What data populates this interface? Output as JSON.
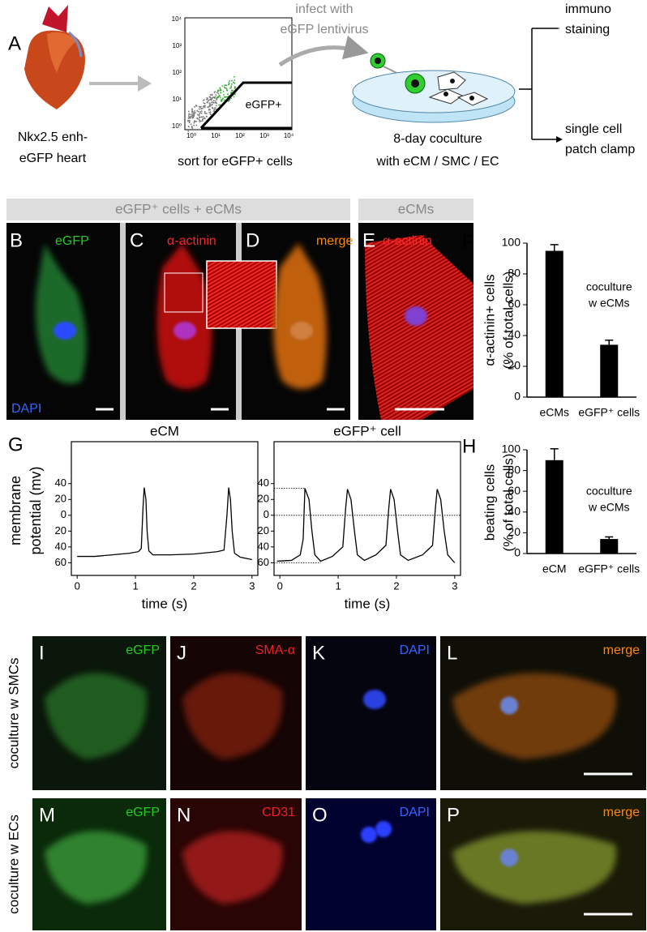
{
  "panel_labels": [
    "A",
    "B",
    "C",
    "D",
    "E",
    "F",
    "G",
    "H",
    "I",
    "J",
    "K",
    "L",
    "M",
    "N",
    "O",
    "P"
  ],
  "panel_a": {
    "heart_label": [
      "Nkx2.5 enh-",
      "eGFP heart"
    ],
    "flow_ticks": [
      "10⁰",
      "10¹",
      "10²",
      "10³",
      "10⁴"
    ],
    "gate_label": "eGFP+",
    "sort_label": "sort for eGFP+ cells",
    "infect_label": [
      "infect with",
      "eGFP lentivirus"
    ],
    "coculture_label": [
      "8-day coculture",
      "with eCM / SMC / EC"
    ],
    "outcome_1": [
      "immuno",
      "staining"
    ],
    "outcome_2": [
      "single cell",
      "patch clamp"
    ]
  },
  "row_b_e": {
    "header": "eGFP⁺ cells + eCMs",
    "header_e": "eCMs",
    "stains": [
      "eGFP",
      "DAPI",
      "α-actinin",
      "merge",
      "α-actinin"
    ]
  },
  "chart_data": [
    {
      "type": "bar",
      "y_label": [
        "α-actinin+ cells",
        "(% of total cells)"
      ],
      "categories": [
        "eCMs",
        "eGFP⁺ cells"
      ],
      "values": [
        95,
        34
      ],
      "errors": [
        4,
        3
      ],
      "color": "#000000",
      "ylim": [
        0,
        100
      ],
      "yticks": [
        0,
        20,
        40,
        60,
        80,
        100
      ],
      "annotation": [
        "coculture",
        "w eCMs"
      ]
    },
    {
      "type": "line",
      "title": "eCM",
      "x_label": "time (s)",
      "y_label": [
        "membrane",
        "potential (mv)"
      ],
      "x": [
        0,
        0.3,
        0.6,
        0.9,
        1.05,
        1.1,
        1.13,
        1.15,
        1.18,
        1.2,
        1.23,
        1.3,
        1.6,
        2.0,
        2.4,
        2.52,
        2.57,
        2.6,
        2.63,
        2.66,
        2.7,
        2.8,
        3.0
      ],
      "values": [
        -52,
        -52,
        -50,
        -48,
        -46,
        -42,
        10,
        35,
        20,
        -20,
        -45,
        -50,
        -50,
        -49,
        -46,
        -44,
        0,
        35,
        20,
        -20,
        -48,
        -53,
        -56
      ],
      "color": "#000000",
      "xlim": [
        -0.1,
        3.1
      ],
      "xticks": [
        0,
        1,
        2,
        3
      ],
      "ylim": [
        -76,
        93
      ],
      "yticks": [
        40,
        20,
        0,
        {
          "value": -20,
          "label": "20"
        },
        {
          "value": -40,
          "label": "40"
        },
        {
          "value": -60,
          "label": "60"
        }
      ]
    },
    {
      "type": "line",
      "title": "eGFP⁺ cell",
      "x_label": "time (s)",
      "x": [
        -0.05,
        0.2,
        0.35,
        0.4,
        0.43,
        0.5,
        0.55,
        0.6,
        0.7,
        0.9,
        1.08,
        1.13,
        1.16,
        1.22,
        1.28,
        1.33,
        1.45,
        1.65,
        1.82,
        1.87,
        1.9,
        1.96,
        2.02,
        2.07,
        2.2,
        2.45,
        2.62,
        2.67,
        2.7,
        2.76,
        2.82,
        2.88,
        3.0
      ],
      "values": [
        -58,
        -57,
        -50,
        -30,
        34,
        20,
        -20,
        -50,
        -58,
        -52,
        -40,
        10,
        33,
        20,
        -20,
        -50,
        -57,
        -50,
        -38,
        10,
        33,
        20,
        -20,
        -50,
        -57,
        -50,
        -38,
        10,
        33,
        20,
        -20,
        -50,
        -60
      ],
      "color": "#000000",
      "xlim": [
        -0.1,
        3.1
      ],
      "xticks": [
        0,
        1,
        2,
        3
      ],
      "ylim": [
        -76,
        93
      ],
      "yticks": [
        40,
        20,
        0,
        {
          "value": -20,
          "label": "20"
        },
        {
          "value": -40,
          "label": "40"
        },
        {
          "value": -60,
          "label": "60"
        }
      ],
      "guides": [
        {
          "y": 34,
          "x": [
            -0.1,
            0.43
          ]
        },
        {
          "y": 0,
          "x": [
            -0.1,
            3.1
          ]
        },
        {
          "y": -60,
          "x": [
            -0.1,
            0.7
          ]
        }
      ]
    },
    {
      "type": "bar",
      "y_label": [
        "beating cells",
        "(% of total cells)"
      ],
      "categories": [
        "eCM",
        "eGFP⁺ cells"
      ],
      "values": [
        90,
        14
      ],
      "errors": [
        11,
        2
      ],
      "color": "#000000",
      "ylim": [
        0,
        100
      ],
      "yticks": [
        0,
        20,
        40,
        60,
        80,
        100
      ],
      "annotation": [
        "coculture",
        "w eCMs"
      ]
    }
  ],
  "rows_i_p": {
    "row_labels": [
      "coculture w SMCs",
      "coculture w ECs"
    ],
    "stains_i_l": [
      "eGFP",
      "SMA-α",
      "DAPI",
      "merge"
    ],
    "stains_m_p": [
      "eGFP",
      "CD31",
      "DAPI",
      "merge"
    ]
  }
}
